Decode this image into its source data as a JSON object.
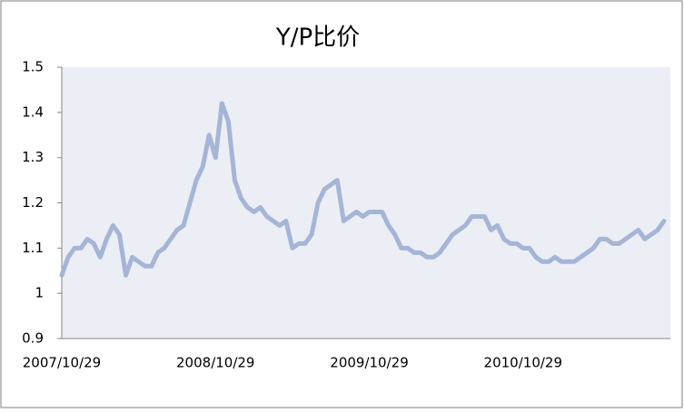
{
  "chart_data": {
    "type": "line",
    "title": "Y/P比价",
    "categories": [
      "2007/10/29",
      null,
      null,
      null,
      null,
      null,
      null,
      null,
      null,
      null,
      null,
      null,
      null,
      null,
      null,
      null,
      null,
      null,
      null,
      null,
      null,
      null,
      null,
      null,
      "2008/10/29",
      null,
      null,
      null,
      null,
      null,
      null,
      null,
      null,
      null,
      null,
      null,
      null,
      null,
      null,
      null,
      null,
      null,
      null,
      null,
      null,
      null,
      null,
      null,
      "2009/10/29",
      null,
      null,
      null,
      null,
      null,
      null,
      null,
      null,
      null,
      null,
      null,
      null,
      null,
      null,
      null,
      null,
      null,
      null,
      null,
      null,
      null,
      null,
      null,
      "2010/10/29",
      null,
      null,
      null,
      null,
      null,
      null,
      null,
      null,
      null,
      null,
      null,
      null,
      null,
      null,
      null,
      null,
      null,
      null,
      null,
      null,
      null,
      null
    ],
    "values": [
      1.04,
      1.08,
      1.1,
      1.1,
      1.12,
      1.11,
      1.08,
      1.12,
      1.15,
      1.13,
      1.04,
      1.08,
      1.07,
      1.06,
      1.06,
      1.09,
      1.1,
      1.12,
      1.14,
      1.15,
      1.2,
      1.25,
      1.28,
      1.35,
      1.3,
      1.42,
      1.38,
      1.25,
      1.21,
      1.19,
      1.18,
      1.19,
      1.17,
      1.16,
      1.15,
      1.16,
      1.1,
      1.11,
      1.11,
      1.13,
      1.2,
      1.23,
      1.24,
      1.25,
      1.16,
      1.17,
      1.18,
      1.17,
      1.18,
      1.18,
      1.18,
      1.15,
      1.13,
      1.1,
      1.1,
      1.09,
      1.09,
      1.08,
      1.08,
      1.09,
      1.11,
      1.13,
      1.14,
      1.15,
      1.17,
      1.17,
      1.17,
      1.14,
      1.15,
      1.12,
      1.11,
      1.11,
      1.1,
      1.1,
      1.08,
      1.07,
      1.07,
      1.08,
      1.07,
      1.07,
      1.07,
      1.08,
      1.09,
      1.1,
      1.12,
      1.12,
      1.11,
      1.11,
      1.12,
      1.13,
      1.14,
      1.12,
      1.13,
      1.14,
      1.16
    ],
    "color": "#a5b5d6",
    "ylim": [
      0.9,
      1.5
    ],
    "yticks": [
      0.9,
      1,
      1.1,
      1.2,
      1.3,
      1.4,
      1.5
    ]
  }
}
